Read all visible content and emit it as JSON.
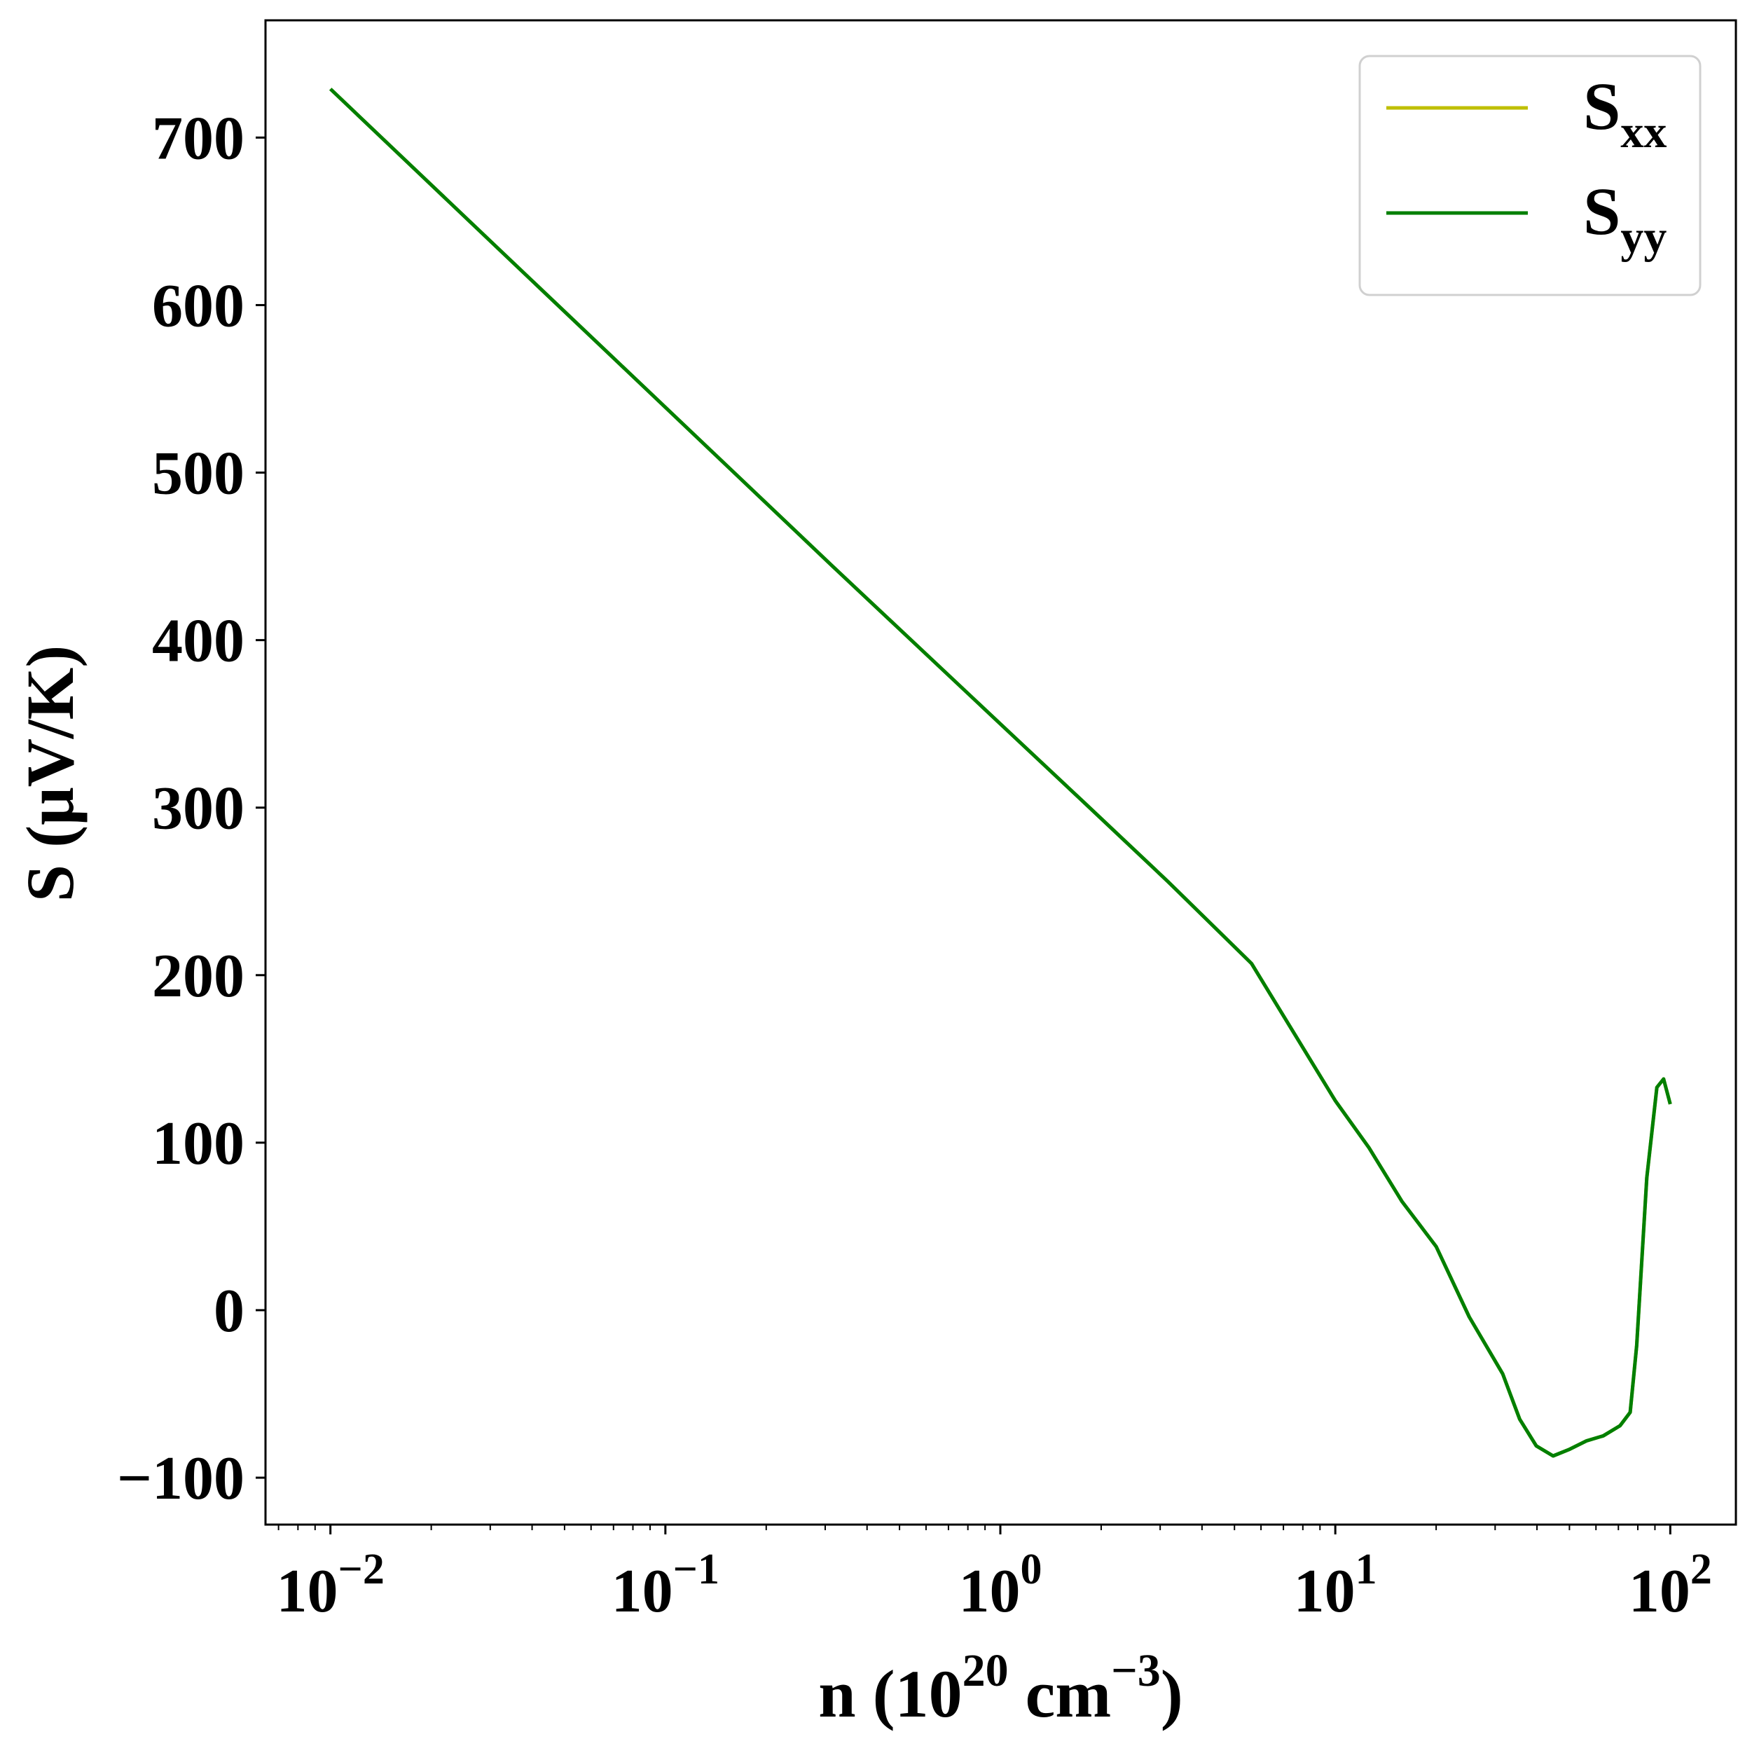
{
  "chart_data": {
    "type": "line",
    "xlabel": [
      {
        "text": "n (10"
      },
      {
        "text": "20",
        "sup": true
      },
      {
        "text": " cm"
      },
      {
        "text": "−3",
        "sup": true
      },
      {
        "text": ")"
      }
    ],
    "ylabel": "S (μV/K)",
    "xscale": "log",
    "x": [
      0.01,
      0.0316,
      0.1,
      0.316,
      1,
      1.78,
      3.16,
      5.62,
      10,
      12.6,
      15.8,
      20,
      25.1,
      31.6,
      35.5,
      39.8,
      44.7,
      50.1,
      56.2,
      63.1,
      70.8,
      75.9,
      79.4,
      85.1,
      91.2,
      95.5,
      100
    ],
    "series": [
      {
        "name": "S",
        "subscript": "xx",
        "color": "#bfbf00",
        "values": [
          729,
          634,
          539,
          444,
          350,
          303,
          256,
          207,
          125,
          97,
          65,
          38,
          -4,
          -38,
          -65,
          -81,
          -87,
          -83,
          -78,
          -75,
          -69,
          -61,
          -21,
          79,
          133,
          138,
          123
        ]
      },
      {
        "name": "S",
        "subscript": "yy",
        "color": "#007f00",
        "values": [
          729,
          634,
          539,
          444,
          350,
          303,
          256,
          207,
          125,
          97,
          65,
          38,
          -4,
          -38,
          -65,
          -81,
          -87,
          -83,
          -78,
          -75,
          -69,
          -61,
          -21,
          79,
          133,
          138,
          123
        ]
      }
    ],
    "xlim": [
      0.0064,
      157
    ],
    "ylim": [
      -128,
      770
    ],
    "xticks": [
      {
        "value": 0.01,
        "label": "10",
        "exponent": "−2"
      },
      {
        "value": 0.1,
        "label": "10",
        "exponent": "−1"
      },
      {
        "value": 1,
        "label": "10",
        "exponent": "0"
      },
      {
        "value": 10,
        "label": "10",
        "exponent": "1"
      },
      {
        "value": 100,
        "label": "10",
        "exponent": "2"
      }
    ],
    "yticks": [
      {
        "value": -100,
        "label": "−100"
      },
      0,
      100,
      200,
      300,
      400,
      500,
      600,
      700
    ],
    "legend": "upper right",
    "grid": false
  }
}
